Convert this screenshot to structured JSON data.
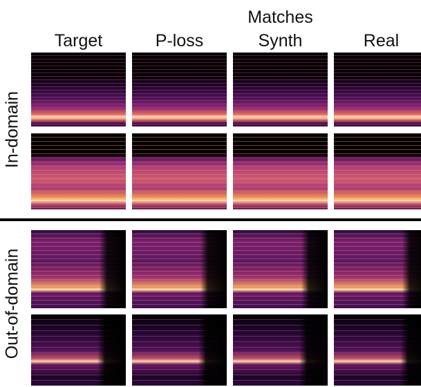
{
  "column_headers": [
    "Target",
    "P-loss",
    "Matches Synth",
    "Real"
  ],
  "row_labels": [
    "In-domain",
    "Out-of-domain"
  ]
}
